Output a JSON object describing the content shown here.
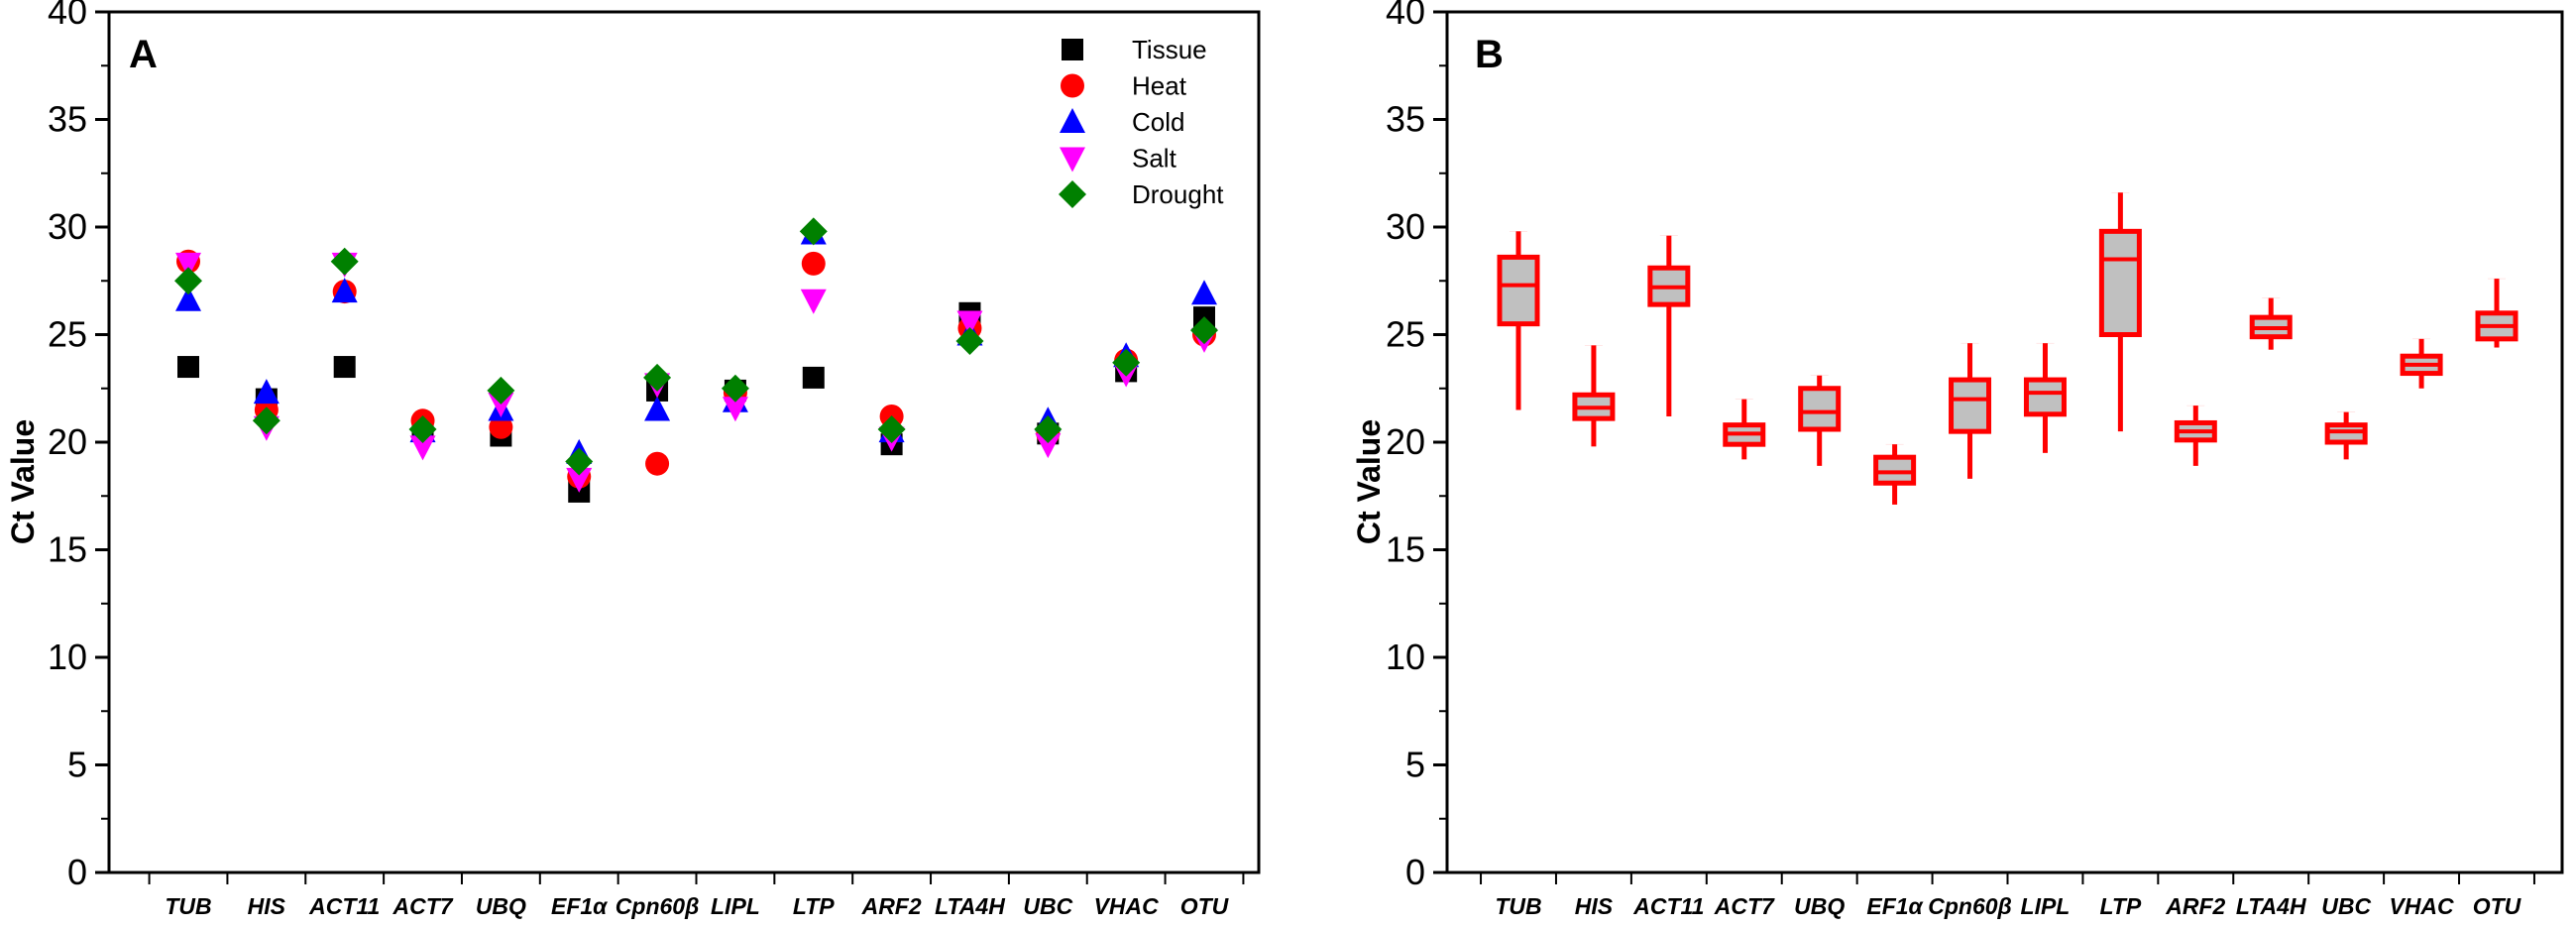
{
  "chart_data": [
    {
      "panel": "A",
      "type": "scatter",
      "ylabel": "Ct Value",
      "ylim": [
        0,
        40
      ],
      "yticks": [
        0,
        5,
        10,
        15,
        20,
        25,
        30,
        35,
        40
      ],
      "categories": [
        "TUB",
        "HIS",
        "ACT11",
        "ACT7",
        "UBQ",
        "EF1α",
        "Cpn60β",
        "LIPL",
        "LTP",
        "ARF2",
        "LTA4H",
        "UBC",
        "VHAC",
        "OTU"
      ],
      "legend_position": "top-right",
      "series": [
        {
          "name": "Tissue",
          "marker": "square",
          "color": "#000000",
          "values": [
            23.5,
            22.0,
            23.5,
            20.6,
            20.3,
            17.7,
            22.4,
            22.4,
            23.0,
            19.9,
            26.0,
            20.4,
            23.3,
            25.8
          ]
        },
        {
          "name": "Heat",
          "marker": "circle",
          "color": "#ff0000",
          "values": [
            28.4,
            21.5,
            27.0,
            21.0,
            20.7,
            18.4,
            19.0,
            22.3,
            28.3,
            21.2,
            25.3,
            20.4,
            23.8,
            25.0
          ]
        },
        {
          "name": "Cold",
          "marker": "triangle-up",
          "color": "#0000ff",
          "values": [
            26.6,
            22.3,
            27.0,
            20.5,
            21.5,
            19.5,
            21.5,
            21.9,
            29.7,
            20.5,
            25.0,
            21.0,
            24.0,
            26.9
          ]
        },
        {
          "name": "Salt",
          "marker": "triangle-down",
          "color": "#ff00ff",
          "values": [
            28.3,
            20.7,
            28.3,
            19.8,
            21.8,
            18.3,
            22.7,
            21.6,
            26.6,
            20.2,
            25.6,
            19.9,
            23.2,
            24.8
          ]
        },
        {
          "name": "Drought",
          "marker": "diamond",
          "color": "#008000",
          "values": [
            27.5,
            21.0,
            28.4,
            20.6,
            22.4,
            19.1,
            23.0,
            22.5,
            29.8,
            20.6,
            24.7,
            20.6,
            23.7,
            25.2
          ]
        }
      ]
    },
    {
      "panel": "B",
      "type": "box",
      "ylabel": "Ct Value",
      "ylim": [
        0,
        40
      ],
      "yticks": [
        0,
        5,
        10,
        15,
        20,
        25,
        30,
        35,
        40
      ],
      "categories": [
        "TUB",
        "HIS",
        "ACT11",
        "ACT7",
        "UBQ",
        "EF1α",
        "Cpn60β",
        "LIPL",
        "LTP",
        "ARF2",
        "LTA4H",
        "UBC",
        "VHAC",
        "OTU"
      ],
      "color": "#ff0000",
      "fill": "#c0c0c0",
      "boxes": [
        {
          "min": 21.5,
          "q1": 25.5,
          "median": 27.3,
          "q3": 28.6,
          "max": 29.8
        },
        {
          "min": 19.8,
          "q1": 21.1,
          "median": 21.6,
          "q3": 22.2,
          "max": 24.5
        },
        {
          "min": 21.2,
          "q1": 26.4,
          "median": 27.2,
          "q3": 28.1,
          "max": 29.6
        },
        {
          "min": 19.2,
          "q1": 19.9,
          "median": 20.4,
          "q3": 20.8,
          "max": 22.0
        },
        {
          "min": 18.9,
          "q1": 20.6,
          "median": 21.4,
          "q3": 22.5,
          "max": 23.1
        },
        {
          "min": 17.1,
          "q1": 18.1,
          "median": 18.6,
          "q3": 19.3,
          "max": 19.9
        },
        {
          "min": 18.3,
          "q1": 20.5,
          "median": 22.0,
          "q3": 22.9,
          "max": 24.6
        },
        {
          "min": 19.5,
          "q1": 21.3,
          "median": 22.3,
          "q3": 22.9,
          "max": 24.6
        },
        {
          "min": 20.5,
          "q1": 25.0,
          "median": 28.5,
          "q3": 29.8,
          "max": 31.6
        },
        {
          "min": 18.9,
          "q1": 20.1,
          "median": 20.5,
          "q3": 20.9,
          "max": 21.7
        },
        {
          "min": 24.3,
          "q1": 24.9,
          "median": 25.3,
          "q3": 25.8,
          "max": 26.7
        },
        {
          "min": 19.2,
          "q1": 20.0,
          "median": 20.5,
          "q3": 20.8,
          "max": 21.4
        },
        {
          "min": 22.5,
          "q1": 23.2,
          "median": 23.6,
          "q3": 24.0,
          "max": 24.8
        },
        {
          "min": 24.4,
          "q1": 24.8,
          "median": 25.4,
          "q3": 26.0,
          "max": 27.6
        }
      ]
    }
  ]
}
